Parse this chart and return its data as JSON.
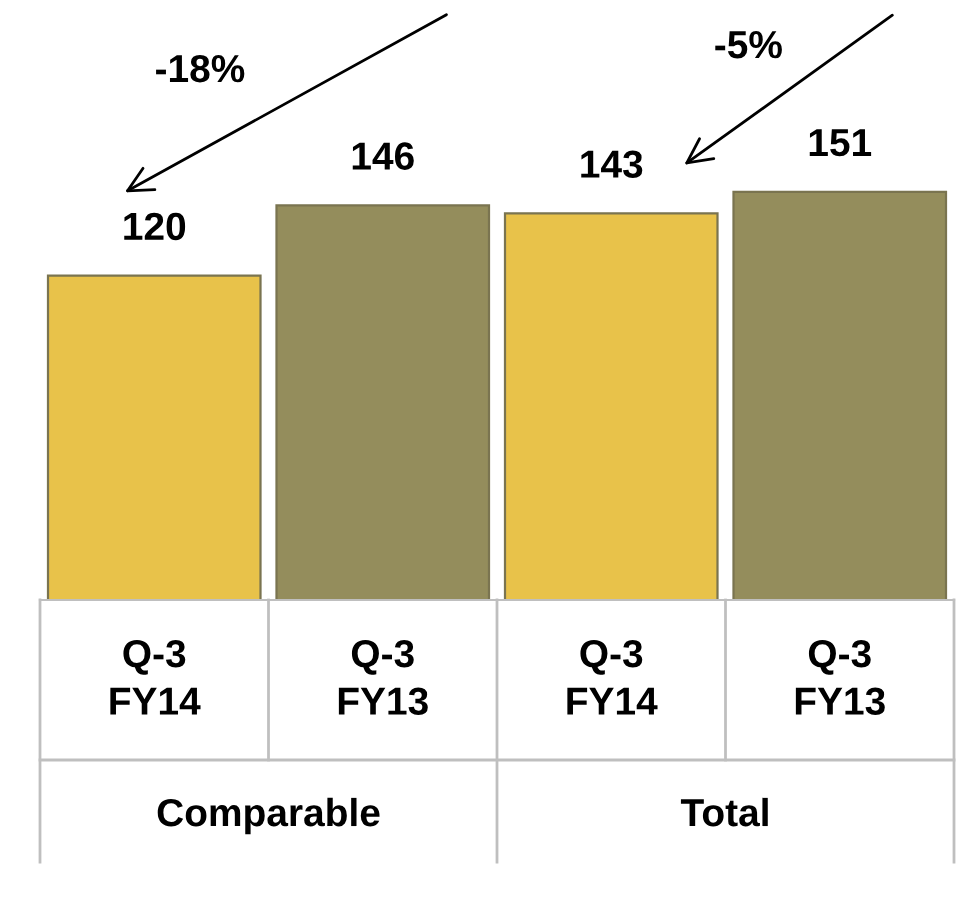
{
  "chart_data": {
    "type": "bar",
    "categories": [
      "Q-3\nFY14",
      "Q-3\nFY13",
      "Q-3\nFY14",
      "Q-3\nFY13"
    ],
    "values": [
      120,
      146,
      143,
      151
    ],
    "colors": [
      "#e8c24a",
      "#948d5c",
      "#e8c24a",
      "#948d5c"
    ],
    "data_labels": true,
    "grid": false,
    "legend": false,
    "annotations": [
      "-18%",
      "-5%",
      "Comparable",
      "Total"
    ]
  }
}
